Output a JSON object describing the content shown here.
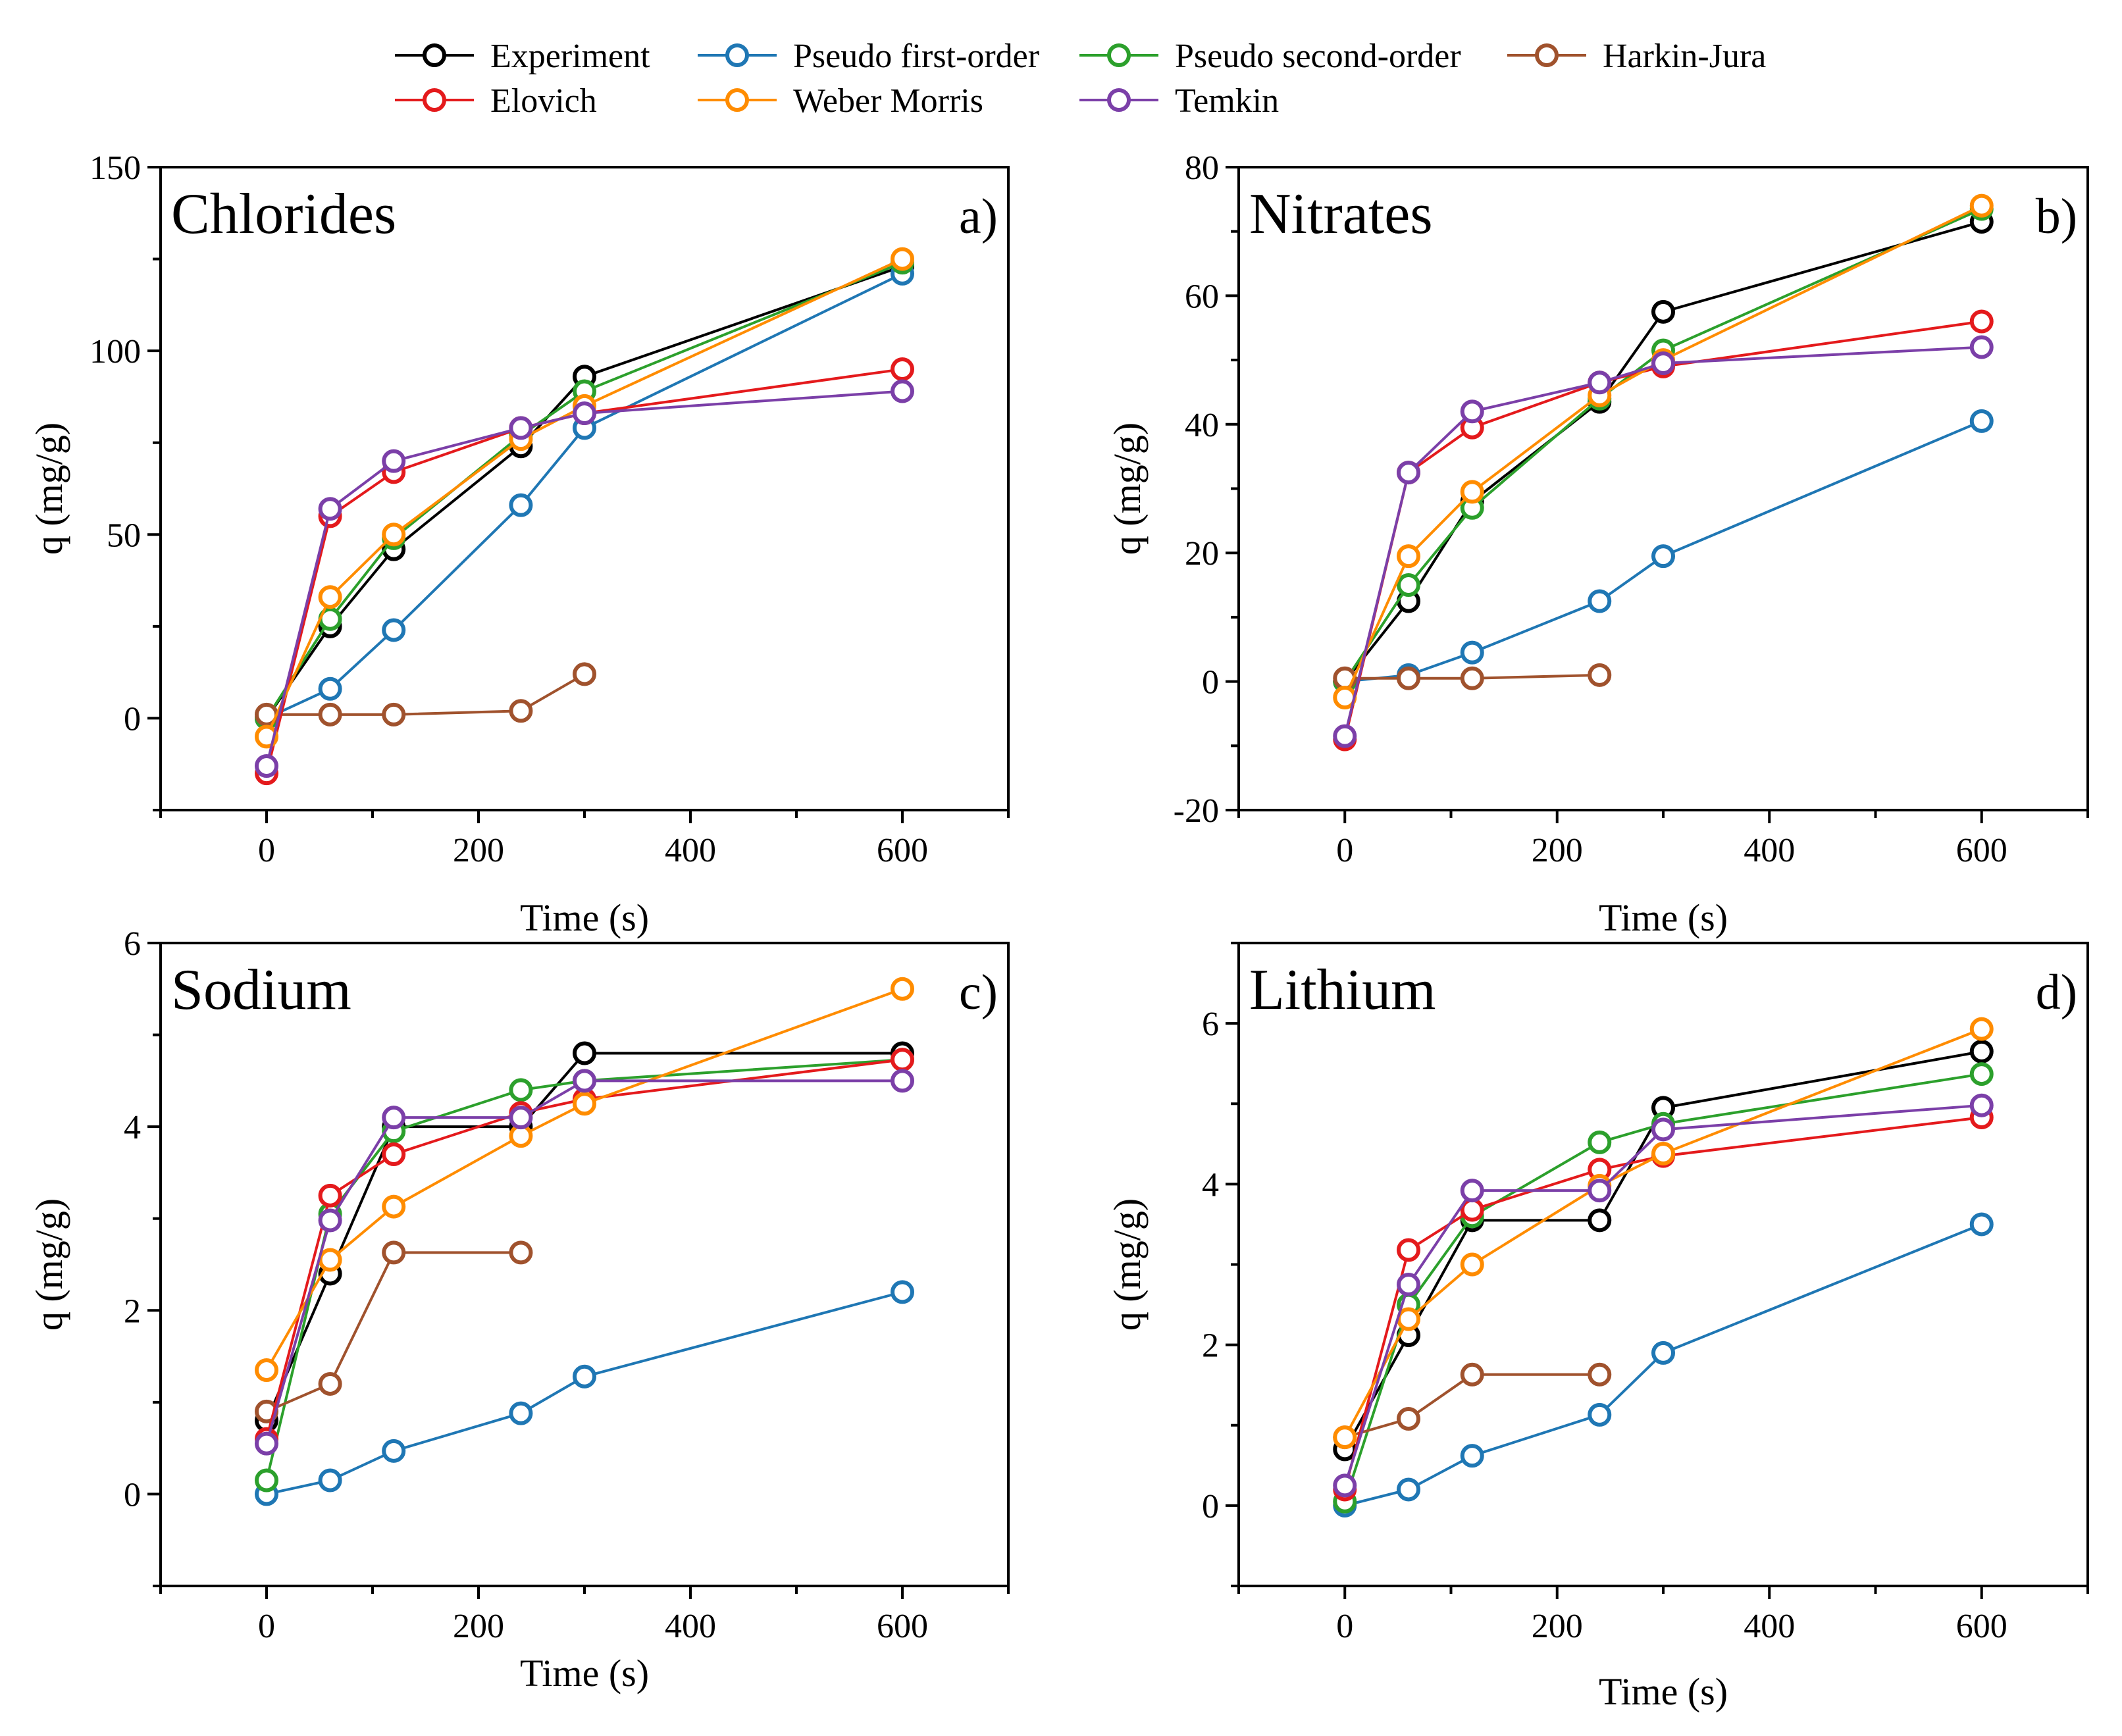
{
  "legend": {
    "items": [
      {
        "label": "Experiment",
        "color": "#000000"
      },
      {
        "label": "Pseudo first-order",
        "color": "#1f77b4"
      },
      {
        "label": "Pseudo second-order",
        "color": "#2ca02c"
      },
      {
        "label": "Harkin-Jura",
        "color": "#a0522d"
      },
      {
        "label": "Elovich",
        "color": "#e41a1c"
      },
      {
        "label": "Weber Morris",
        "color": "#ff8c00"
      },
      {
        "label": "Temkin",
        "color": "#7b3fa8"
      }
    ]
  },
  "chart_data": [
    {
      "type": "line",
      "title": "Chlorides",
      "panel_letter": "a)",
      "xlabel": "Time (s)",
      "ylabel": "q (mg/g)",
      "xlim": [
        -100,
        700
      ],
      "ylim": [
        -25,
        150
      ],
      "xticks": [
        0,
        200,
        400,
        600
      ],
      "yticks": [
        0,
        50,
        100,
        150
      ],
      "series": [
        {
          "name": "Experiment",
          "x": [
            0,
            60,
            120,
            240,
            300,
            600
          ],
          "y": [
            0,
            25,
            46,
            74,
            93,
            123
          ]
        },
        {
          "name": "Pseudo first-order",
          "x": [
            0,
            60,
            120,
            240,
            300,
            600
          ],
          "y": [
            0,
            8,
            24,
            58,
            79,
            121
          ]
        },
        {
          "name": "Pseudo second-order",
          "x": [
            0,
            60,
            120,
            240,
            300,
            600
          ],
          "y": [
            0,
            27,
            49,
            77,
            89,
            124
          ]
        },
        {
          "name": "Harkin-Jura",
          "x": [
            0,
            60,
            120,
            240,
            300
          ],
          "y": [
            1,
            1,
            1,
            2,
            12
          ]
        },
        {
          "name": "Elovich",
          "x": [
            0,
            60,
            120,
            240,
            300,
            600
          ],
          "y": [
            -15,
            55,
            67,
            79,
            83,
            95
          ]
        },
        {
          "name": "Weber Morris",
          "x": [
            0,
            60,
            120,
            240,
            300,
            600
          ],
          "y": [
            -5,
            33,
            50,
            76,
            85,
            125
          ]
        },
        {
          "name": "Temkin",
          "x": [
            0,
            60,
            120,
            240,
            300,
            600
          ],
          "y": [
            -13,
            57,
            70,
            79,
            83,
            89
          ]
        }
      ]
    },
    {
      "type": "line",
      "title": "Nitrates",
      "panel_letter": "b)",
      "xlabel": "Time (s)",
      "ylabel": "q (mg/g)",
      "xlim": [
        -100,
        700
      ],
      "ylim": [
        -20,
        80
      ],
      "xticks": [
        0,
        200,
        400,
        600
      ],
      "yticks": [
        -20,
        0,
        20,
        40,
        60,
        80
      ],
      "series": [
        {
          "name": "Experiment",
          "x": [
            0,
            60,
            120,
            240,
            300,
            600
          ],
          "y": [
            0,
            12.5,
            28,
            43.5,
            57.5,
            71.5
          ]
        },
        {
          "name": "Pseudo first-order",
          "x": [
            0,
            60,
            120,
            240,
            300,
            600
          ],
          "y": [
            0,
            1,
            4.5,
            12.5,
            19.5,
            40.5
          ]
        },
        {
          "name": "Pseudo second-order",
          "x": [
            0,
            60,
            120,
            240,
            300,
            600
          ],
          "y": [
            0,
            15,
            27,
            44,
            51.5,
            73.5
          ]
        },
        {
          "name": "Harkin-Jura",
          "x": [
            0,
            60,
            120,
            240
          ],
          "y": [
            0.5,
            0.5,
            0.5,
            1
          ]
        },
        {
          "name": "Elovich",
          "x": [
            0,
            60,
            120,
            240,
            300,
            600
          ],
          "y": [
            -9,
            32.5,
            39.5,
            46.5,
            49,
            56
          ]
        },
        {
          "name": "Weber Morris",
          "x": [
            0,
            60,
            120,
            240,
            300,
            600
          ],
          "y": [
            -2.5,
            19.5,
            29.5,
            44.5,
            50,
            74
          ]
        },
        {
          "name": "Temkin",
          "x": [
            0,
            60,
            120,
            240,
            300,
            600
          ],
          "y": [
            -8.5,
            32.5,
            42,
            46.5,
            49.5,
            52
          ]
        }
      ]
    },
    {
      "type": "line",
      "title": "Sodium",
      "panel_letter": "c)",
      "xlabel": "Time (s)",
      "ylabel": "q (mg/g)",
      "xlim": [
        -100,
        700
      ],
      "ylim": [
        -1,
        6
      ],
      "xticks": [
        0,
        200,
        400,
        600
      ],
      "yticks": [
        0,
        2,
        4,
        6
      ],
      "series": [
        {
          "name": "Experiment",
          "x": [
            0,
            60,
            120,
            240,
            300,
            600
          ],
          "y": [
            0.8,
            2.4,
            4.0,
            4.0,
            4.8,
            4.8
          ]
        },
        {
          "name": "Pseudo first-order",
          "x": [
            0,
            60,
            120,
            240,
            300,
            600
          ],
          "y": [
            0,
            0.15,
            0.47,
            0.88,
            1.28,
            2.2
          ]
        },
        {
          "name": "Pseudo second-order",
          "x": [
            0,
            60,
            120,
            240,
            300,
            600
          ],
          "y": [
            0.15,
            3.05,
            3.95,
            4.4,
            4.5,
            4.73
          ]
        },
        {
          "name": "Harkin-Jura",
          "x": [
            0,
            60,
            120,
            240
          ],
          "y": [
            0.9,
            1.2,
            2.63,
            2.63
          ]
        },
        {
          "name": "Elovich",
          "x": [
            0,
            60,
            120,
            240,
            300,
            600
          ],
          "y": [
            0.6,
            3.25,
            3.7,
            4.15,
            4.3,
            4.73
          ]
        },
        {
          "name": "Weber Morris",
          "x": [
            0,
            60,
            120,
            240,
            300,
            600
          ],
          "y": [
            1.35,
            2.55,
            3.13,
            3.9,
            4.25,
            5.5
          ]
        },
        {
          "name": "Temkin",
          "x": [
            0,
            60,
            120,
            240,
            300,
            600
          ],
          "y": [
            0.55,
            2.98,
            4.1,
            4.1,
            4.5,
            4.5
          ]
        }
      ]
    },
    {
      "type": "line",
      "title": "Lithium",
      "panel_letter": "d)",
      "xlabel": "Time (s)",
      "ylabel": "q (mg/g)",
      "xlim": [
        -100,
        700
      ],
      "ylim": [
        -1,
        7
      ],
      "xticks": [
        0,
        200,
        400,
        600
      ],
      "yticks": [
        0,
        2,
        4,
        6
      ],
      "series": [
        {
          "name": "Experiment",
          "x": [
            0,
            60,
            120,
            240,
            300,
            600
          ],
          "y": [
            0.7,
            2.12,
            3.55,
            3.55,
            4.95,
            5.65
          ]
        },
        {
          "name": "Pseudo first-order",
          "x": [
            0,
            60,
            120,
            240,
            300,
            600
          ],
          "y": [
            0,
            0.2,
            0.62,
            1.13,
            1.9,
            3.5
          ]
        },
        {
          "name": "Pseudo second-order",
          "x": [
            0,
            60,
            120,
            240,
            300,
            600
          ],
          "y": [
            0.05,
            2.5,
            3.6,
            4.52,
            4.75,
            5.37
          ]
        },
        {
          "name": "Harkin-Jura",
          "x": [
            0,
            60,
            120,
            240
          ],
          "y": [
            0.85,
            1.08,
            1.63,
            1.63
          ]
        },
        {
          "name": "Elovich",
          "x": [
            0,
            60,
            120,
            240,
            300,
            600
          ],
          "y": [
            0.2,
            3.18,
            3.68,
            4.18,
            4.35,
            4.83
          ]
        },
        {
          "name": "Weber Morris",
          "x": [
            0,
            60,
            120,
            240,
            300,
            600
          ],
          "y": [
            0.85,
            2.32,
            3.0,
            3.98,
            4.38,
            5.93
          ]
        },
        {
          "name": "Temkin",
          "x": [
            0,
            60,
            120,
            240,
            300,
            600
          ],
          "y": [
            0.25,
            2.75,
            3.92,
            3.92,
            4.68,
            4.98
          ]
        }
      ]
    }
  ]
}
